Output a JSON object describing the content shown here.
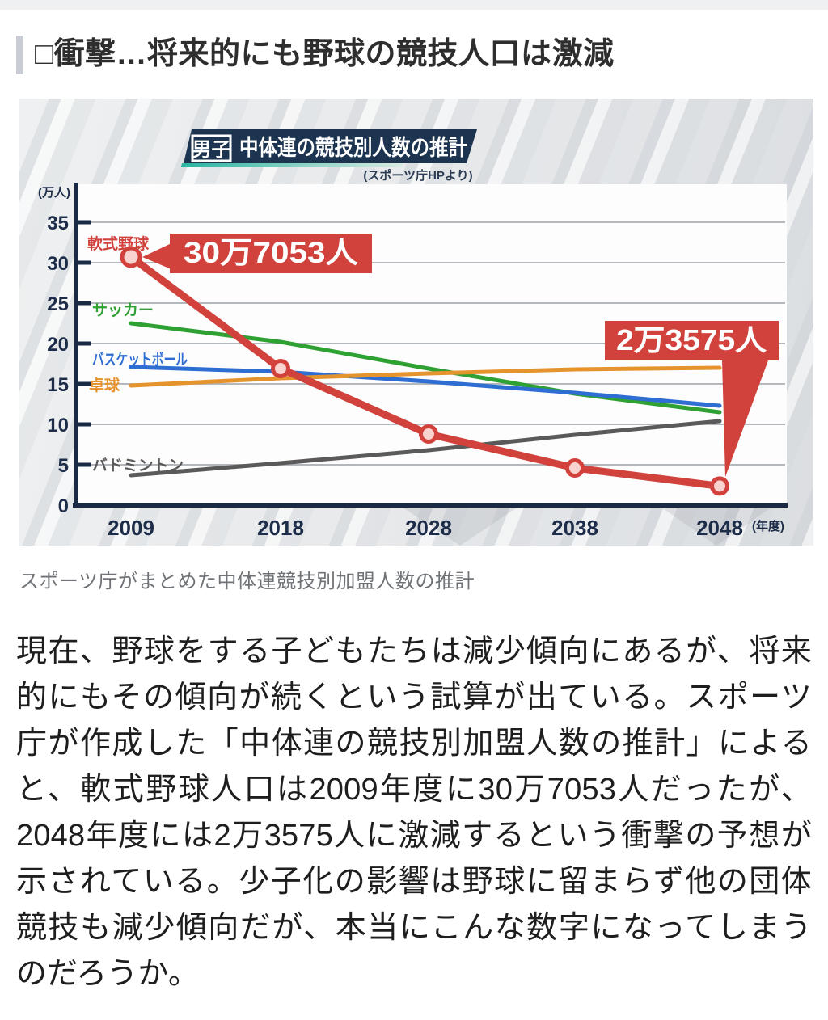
{
  "page": {
    "heading": "□衝撃…将来的にも野球の競技人口は激減",
    "image_caption": "スポーツ庁がまとめた中体連競技別加盟人数の推計",
    "body_paragraph": "現在、野球をする子どもたちは減少傾向にあるが、将来的にもその傾向が続くという試算が出ている。スポーツ庁が作成した「中体連の競技別加盟人数の推計」によると、軟式野球人口は2009年度に30万7053人だったが、2048年度には2万3575人に激減するという衝撃の予想が示されている。少子化の影響は野球に留まらず他の団体競技も減少傾向だが、本当にこんな数字になってしまうのだろうか。"
  },
  "chart": {
    "badge": "男子",
    "title": "中体連の競技別人数の推計",
    "source": "(スポーツ庁HPより)",
    "y_axis_unit": "(万人)",
    "x_axis_unit": "(年度)",
    "callouts": [
      {
        "label": "30万7053人",
        "series": "軟式野球",
        "x": 2009
      },
      {
        "label": "2万3575人",
        "series": "軟式野球",
        "x": 2048
      }
    ],
    "colors": {
      "title_bar": "#1d3450",
      "teal_accent": "#29b2a0",
      "axis": "#1b2a44",
      "tick_label": "#1d2d49",
      "grid": "#b4b8bc",
      "callout_red": "#d2423c",
      "point_fill": "#f8d3d0",
      "plot_bg": "#fdfdfe"
    }
  },
  "chart_data": {
    "type": "line",
    "title": "男子 中体連の競技別人数の推計",
    "source": "(スポーツ庁HPより)",
    "x": [
      2009,
      2018,
      2028,
      2038,
      2048
    ],
    "x_tick_labels": [
      "2009",
      "2018",
      "2028",
      "2038",
      "2048"
    ],
    "x_unit": "(年度)",
    "y_unit": "(万人)",
    "ylim": [
      0,
      37
    ],
    "yticks": [
      0,
      5,
      10,
      15,
      20,
      25,
      30,
      35
    ],
    "grid": true,
    "legend_position": "inline-labels",
    "series": [
      {
        "name": "軟式野球",
        "color": "#d2423c",
        "values": [
          30.7,
          16.9,
          8.8,
          4.6,
          2.36
        ]
      },
      {
        "name": "サッカー",
        "color": "#2fa133",
        "values": [
          22.5,
          20.2,
          16.9,
          13.8,
          11.5
        ]
      },
      {
        "name": "バスケットボール",
        "color": "#2e6ed2",
        "values": [
          17.1,
          16.5,
          15.3,
          13.9,
          12.3
        ]
      },
      {
        "name": "卓球",
        "color": "#e5942d",
        "values": [
          14.8,
          15.7,
          16.3,
          16.8,
          17.0
        ]
      },
      {
        "name": "バドミントン",
        "color": "#5a5a5a",
        "values": [
          3.7,
          5.2,
          6.8,
          8.7,
          10.4
        ]
      }
    ],
    "annotations": [
      {
        "text": "30万7053人",
        "target_series": "軟式野球",
        "target_x": 2009,
        "value_people": 307053
      },
      {
        "text": "2万3575人",
        "target_series": "軟式野球",
        "target_x": 2048,
        "value_people": 23575
      }
    ]
  }
}
